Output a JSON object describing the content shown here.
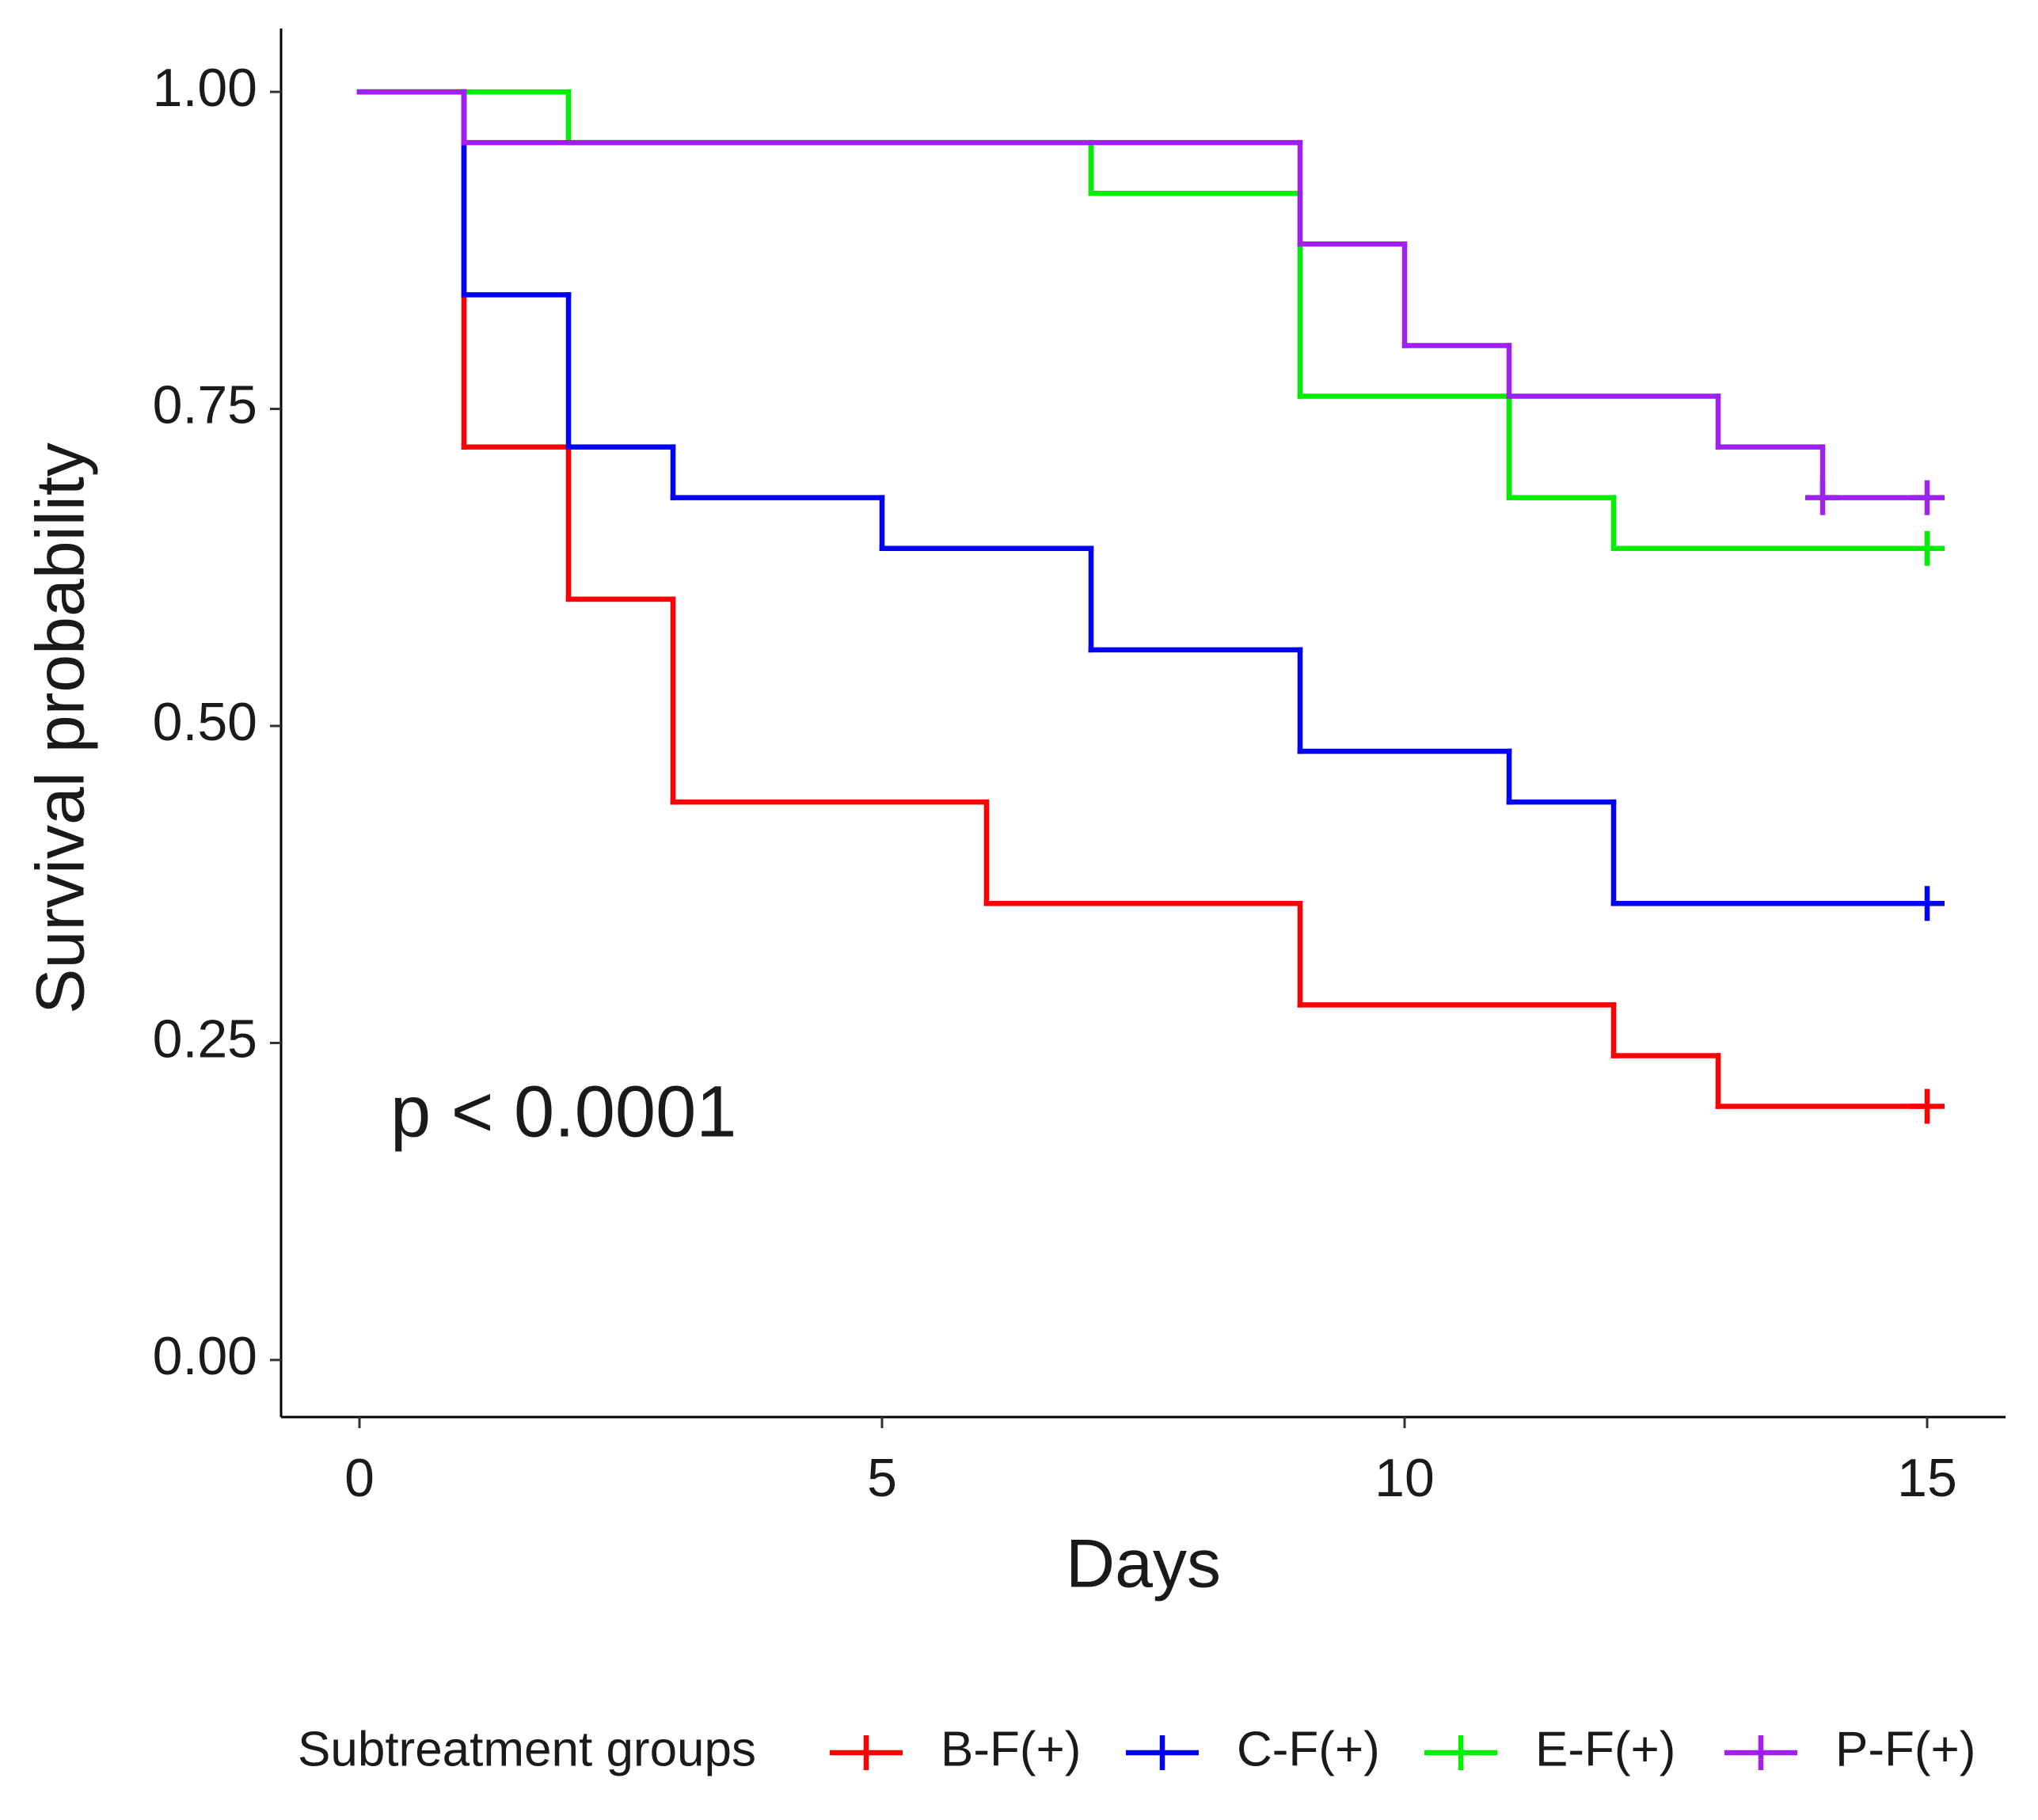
{
  "chart_data": {
    "type": "step",
    "xlabel": "Days",
    "ylabel": "Survival probability",
    "annotation": "p < 0.0001",
    "legend_title": "Subtreatment groups",
    "legend": "bottom",
    "xlim": [
      -0.75,
      15.75
    ],
    "xticks": [
      0,
      5,
      10,
      15
    ],
    "ylim": [
      -0.045,
      1.05
    ],
    "yticks": [
      {
        "value": 0,
        "label": "0.00"
      },
      0.25,
      {
        "value": 0.5,
        "label": "0.50"
      },
      0.75,
      {
        "value": 1,
        "label": "1.00"
      }
    ],
    "series": [
      {
        "name": "B-F(+)",
        "color": "#ff0000",
        "x": [
          0,
          1,
          2,
          3,
          6,
          9,
          12,
          13,
          15
        ],
        "values": [
          1,
          0.72,
          0.6,
          0.44,
          0.36,
          0.28,
          0.24,
          0.2,
          0.2
        ],
        "censor_x": [
          15
        ],
        "censor_values": [
          0.2
        ]
      },
      {
        "name": "C-F(+)",
        "color": "#0000ff",
        "x": [
          0,
          1,
          2,
          3,
          5,
          7,
          9,
          11,
          12,
          15
        ],
        "values": [
          1,
          0.84,
          0.72,
          0.68,
          0.64,
          0.56,
          0.48,
          0.44,
          0.36,
          0.36
        ],
        "censor_x": [
          15
        ],
        "censor_values": [
          0.36
        ]
      },
      {
        "name": "E-F(+)",
        "color": "#00ee00",
        "x": [
          0,
          2,
          7,
          9,
          11,
          12,
          15
        ],
        "values": [
          1,
          0.96,
          0.92,
          0.76,
          0.68,
          0.64,
          0.64
        ],
        "censor_x": [
          15
        ],
        "censor_values": [
          0.64
        ]
      },
      {
        "name": "P-F(+)",
        "color": "#a020f0",
        "x": [
          0,
          1,
          9,
          10,
          11,
          13,
          14,
          15
        ],
        "values": [
          1,
          0.96,
          0.88,
          0.8,
          0.76,
          0.72,
          0.68,
          0.68
        ],
        "censor_x": [
          14,
          15
        ],
        "censor_values": [
          0.68,
          0.68
        ]
      }
    ]
  }
}
